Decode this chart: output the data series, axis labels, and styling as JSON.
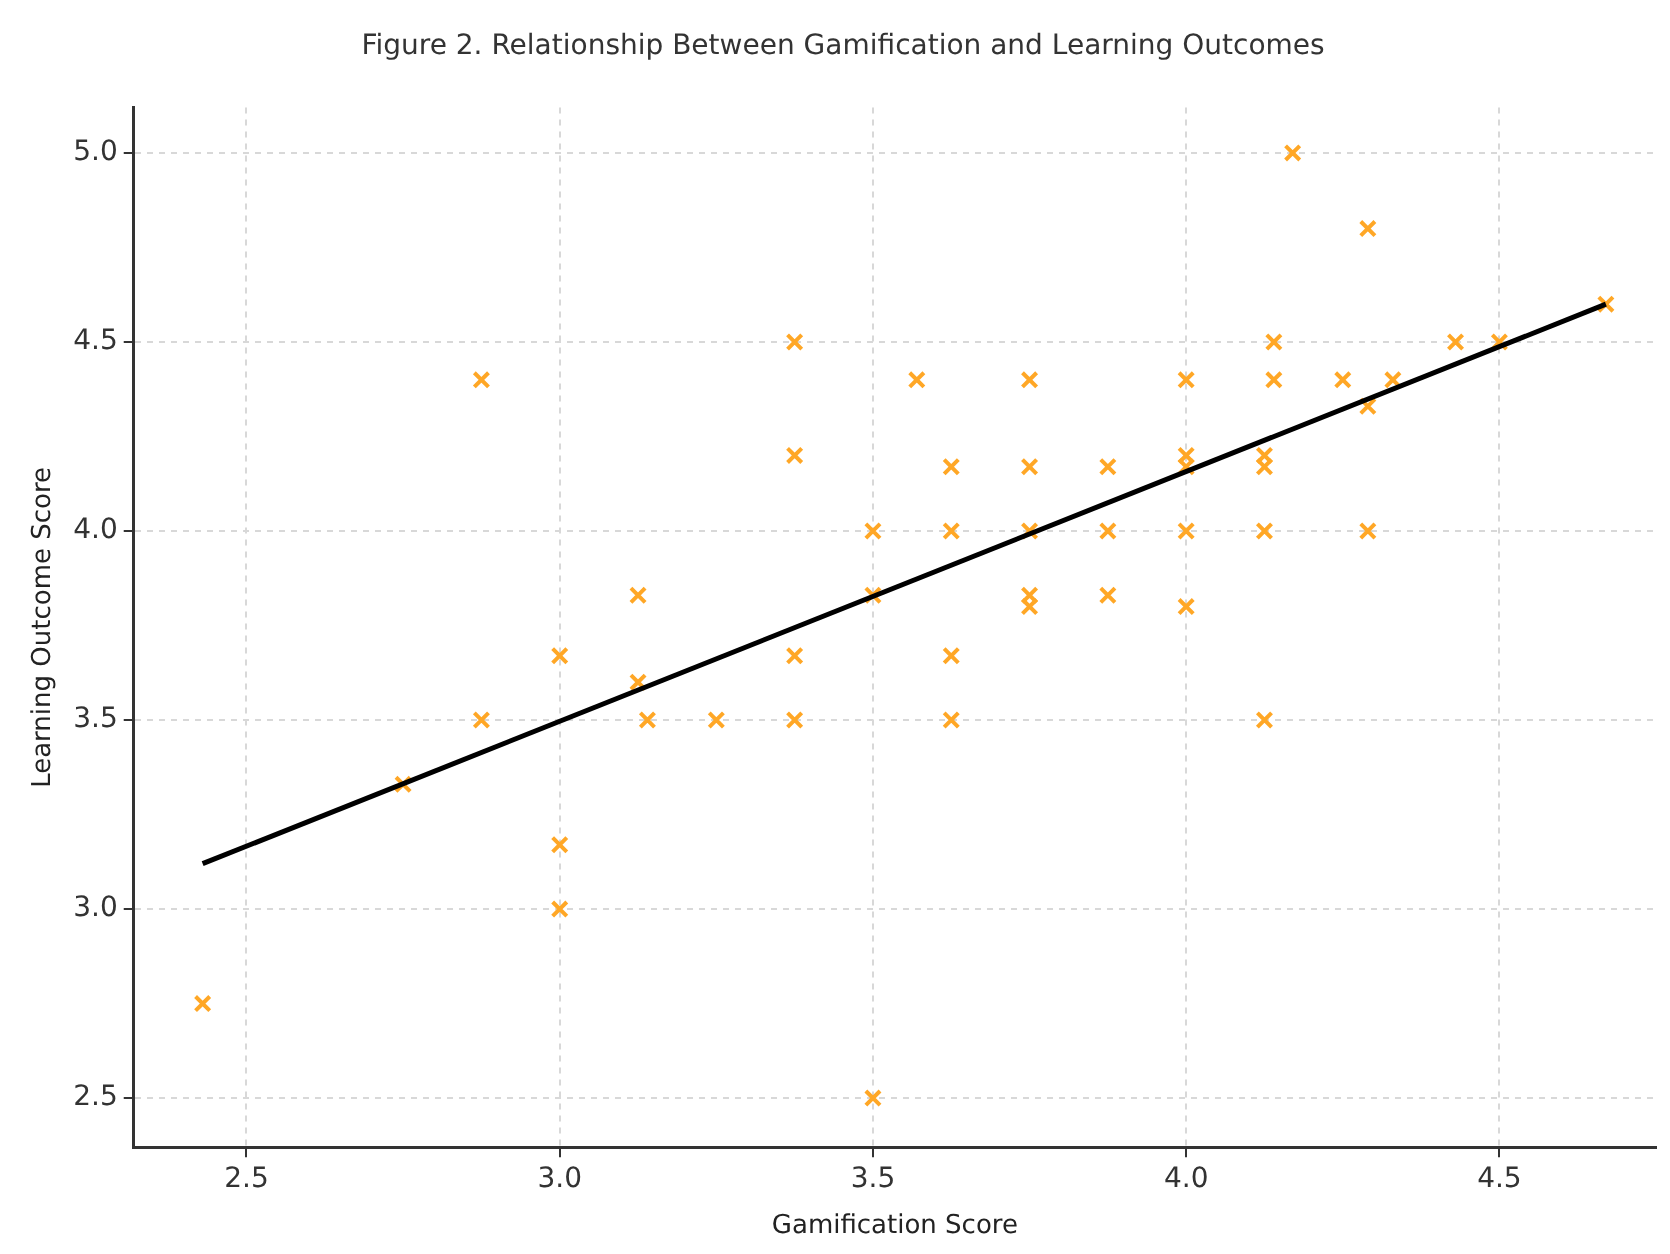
{
  "chart_data": {
    "type": "scatter",
    "title": "Figure 2. Relationship Between Gamification and Learning Outcomes",
    "xlabel": "Gamification Score",
    "ylabel": "Learning Outcome Score",
    "xlim": [
      2.32,
      4.75
    ],
    "ylim": [
      2.37,
      5.12
    ],
    "xticks": [
      2.5,
      {
        "value": 3,
        "label": "3.0"
      },
      3.5,
      {
        "value": 4,
        "label": "4.0"
      },
      4.5
    ],
    "yticks": [
      2.5,
      {
        "value": 3,
        "label": "3.0"
      },
      3.5,
      {
        "value": 4,
        "label": "4.0"
      },
      4.5,
      {
        "value": 5,
        "label": "5.0"
      }
    ],
    "grid": true,
    "legend": false,
    "series": [
      {
        "marker": "cross",
        "color": "#ffa726",
        "x": [
          2.43,
          2.75,
          2.875,
          2.875,
          3.0,
          3.0,
          3.0,
          3.125,
          3.125,
          3.14,
          3.25,
          3.375,
          3.375,
          3.375,
          3.375,
          3.5,
          3.5,
          3.5,
          3.57,
          3.625,
          3.625,
          3.625,
          3.625,
          3.75,
          3.75,
          3.75,
          3.75,
          3.75,
          3.875,
          3.875,
          3.875,
          4.0,
          4.0,
          4.0,
          4.0,
          4.0,
          4.125,
          4.125,
          4.125,
          4.125,
          4.14,
          4.14,
          4.17,
          4.25,
          4.29,
          4.29,
          4.29,
          4.33,
          4.43,
          4.5,
          4.67
        ],
        "values": [
          2.75,
          3.33,
          3.5,
          4.4,
          3.67,
          3.17,
          3.0,
          3.83,
          3.6,
          3.5,
          3.5,
          3.5,
          3.67,
          4.2,
          4.5,
          4.0,
          3.83,
          2.5,
          4.4,
          4.17,
          4.0,
          3.67,
          3.5,
          4.4,
          4.17,
          4.0,
          3.83,
          3.8,
          4.17,
          4.0,
          3.83,
          4.4,
          4.2,
          4.17,
          4.0,
          3.8,
          4.2,
          4.17,
          4.0,
          3.5,
          4.5,
          4.4,
          5.0,
          4.4,
          4.8,
          4.33,
          4.0,
          4.4,
          4.5,
          4.5,
          4.6
        ]
      },
      {
        "type": "line",
        "marker": "none",
        "color": "#000000",
        "x": [
          2.43,
          4.67
        ],
        "values": [
          3.12,
          4.6
        ]
      }
    ]
  }
}
